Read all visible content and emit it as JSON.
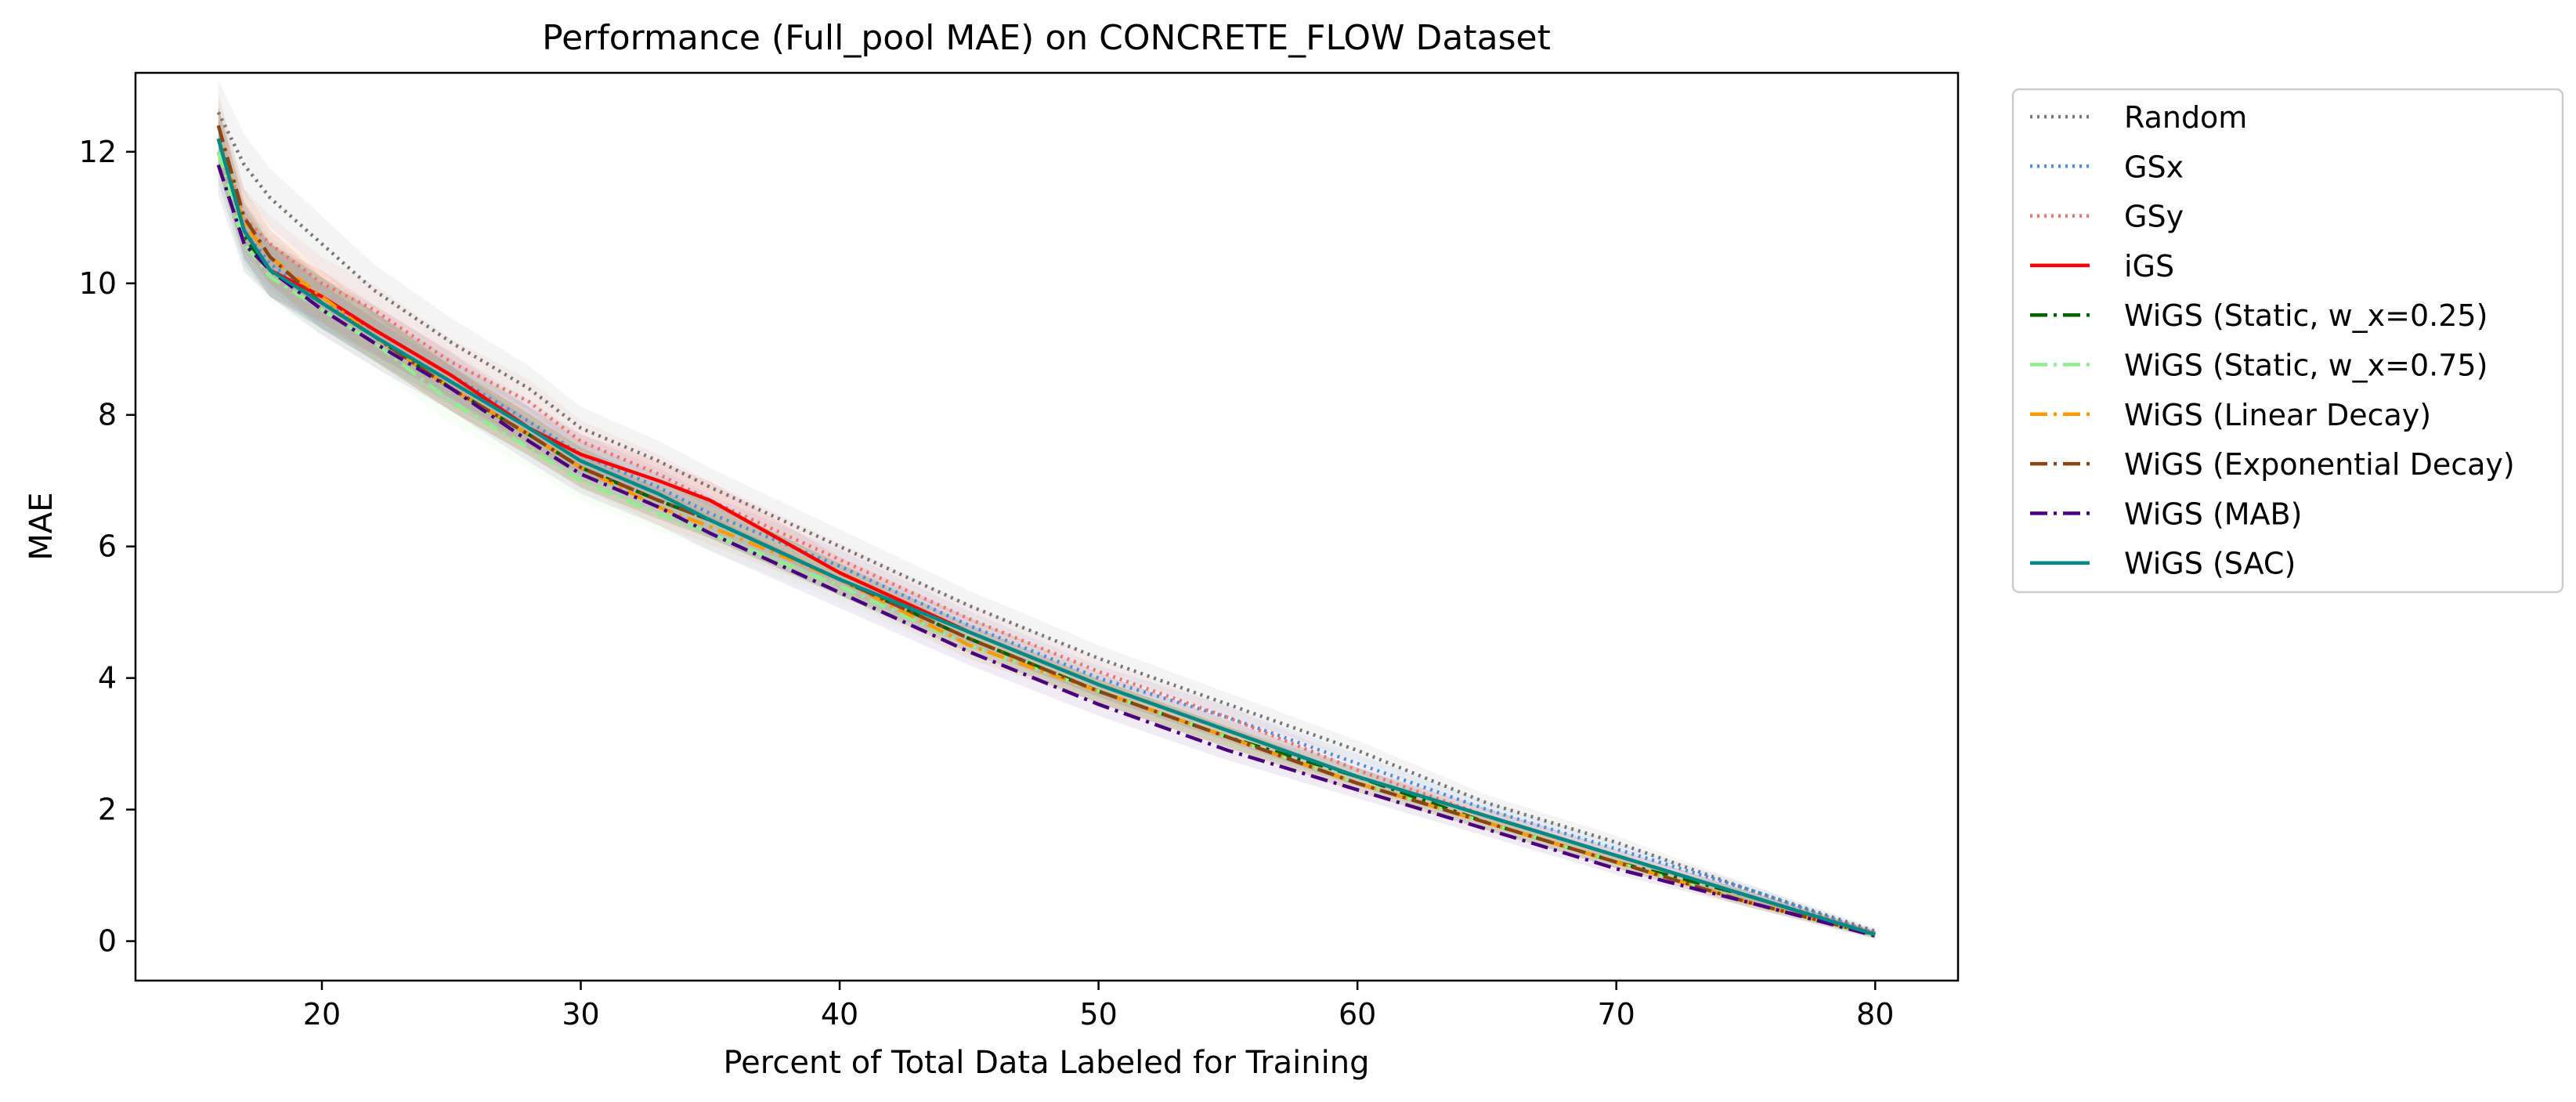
{
  "chart_data": {
    "type": "line",
    "title": "Performance (Full_pool MAE) on CONCRETE_FLOW Dataset",
    "xlabel": "Percent of Total Data Labeled for Training",
    "ylabel": "MAE",
    "xlim": [
      12.8,
      83.2
    ],
    "ylim": [
      -0.6,
      13.2
    ],
    "xticks": [
      20,
      30,
      40,
      50,
      60,
      70,
      80
    ],
    "yticks": [
      0,
      2,
      4,
      6,
      8,
      10,
      12
    ],
    "grid": false,
    "legend_position": "outside-right",
    "x": [
      16,
      17,
      18,
      20,
      22,
      25,
      28,
      30,
      33,
      35,
      40,
      45,
      50,
      55,
      60,
      65,
      70,
      75,
      80
    ],
    "series": [
      {
        "name": "Random",
        "color": "#777777",
        "style": "dotted",
        "values": [
          12.6,
          11.8,
          11.3,
          10.6,
          9.9,
          9.1,
          8.4,
          7.8,
          7.3,
          6.9,
          6.0,
          5.1,
          4.3,
          3.6,
          2.9,
          2.1,
          1.5,
          0.8,
          0.15
        ]
      },
      {
        "name": "GSx",
        "color": "#4a90e2",
        "style": "dotted",
        "values": [
          12.2,
          10.8,
          10.3,
          9.7,
          9.3,
          8.6,
          7.9,
          7.4,
          6.9,
          6.5,
          5.7,
          4.8,
          4.0,
          3.4,
          2.7,
          2.0,
          1.4,
          0.8,
          0.12
        ]
      },
      {
        "name": "GSy",
        "color": "#f4716a",
        "style": "dotted",
        "values": [
          12.2,
          11.0,
          10.6,
          10.0,
          9.6,
          8.8,
          8.2,
          7.6,
          7.1,
          6.7,
          5.8,
          4.9,
          4.1,
          3.4,
          2.6,
          1.9,
          1.3,
          0.7,
          0.12
        ]
      },
      {
        "name": "iGS",
        "color": "#ff0000",
        "style": "solid",
        "values": [
          12.2,
          10.8,
          10.2,
          9.8,
          9.3,
          8.6,
          7.8,
          7.4,
          7.0,
          6.7,
          5.6,
          4.7,
          3.9,
          3.2,
          2.5,
          1.9,
          1.3,
          0.7,
          0.1
        ]
      },
      {
        "name": "WiGS (Static, w_x=0.25)",
        "color": "#006400",
        "style": "dashdot",
        "values": [
          12.0,
          10.7,
          10.2,
          9.7,
          9.2,
          8.4,
          7.7,
          7.2,
          6.7,
          6.4,
          5.5,
          4.6,
          3.8,
          3.1,
          2.5,
          1.8,
          1.2,
          0.7,
          0.1
        ]
      },
      {
        "name": "WiGS (Static, w_x=0.75)",
        "color": "#90ee90",
        "style": "dashdot",
        "values": [
          12.0,
          10.6,
          10.1,
          9.6,
          9.1,
          8.2,
          7.5,
          7.0,
          6.5,
          6.2,
          5.4,
          4.5,
          3.8,
          3.1,
          2.4,
          1.8,
          1.2,
          0.6,
          0.08
        ]
      },
      {
        "name": "WiGS (Linear Decay)",
        "color": "#ff9900",
        "style": "dashdot",
        "values": [
          12.2,
          10.9,
          10.4,
          9.8,
          9.2,
          8.4,
          7.7,
          7.2,
          6.6,
          6.3,
          5.5,
          4.5,
          3.8,
          3.1,
          2.4,
          1.8,
          1.2,
          0.6,
          0.1
        ]
      },
      {
        "name": "WiGS (Exponential Decay)",
        "color": "#8b4513",
        "style": "dashdot",
        "values": [
          12.4,
          11.0,
          10.4,
          9.7,
          9.2,
          8.4,
          7.7,
          7.2,
          6.7,
          6.4,
          5.5,
          4.6,
          3.8,
          3.1,
          2.4,
          1.8,
          1.2,
          0.6,
          0.1
        ]
      },
      {
        "name": "WiGS (MAB)",
        "color": "#4b0082",
        "style": "dashdot",
        "values": [
          11.8,
          10.6,
          10.2,
          9.6,
          9.1,
          8.4,
          7.6,
          7.1,
          6.6,
          6.2,
          5.3,
          4.4,
          3.6,
          2.9,
          2.3,
          1.7,
          1.1,
          0.6,
          0.08
        ]
      },
      {
        "name": "WiGS (SAC)",
        "color": "#008b8b",
        "style": "solid",
        "values": [
          12.2,
          10.8,
          10.2,
          9.7,
          9.2,
          8.5,
          7.8,
          7.3,
          6.8,
          6.4,
          5.5,
          4.7,
          3.9,
          3.2,
          2.5,
          1.9,
          1.3,
          0.7,
          0.1
        ]
      }
    ]
  }
}
